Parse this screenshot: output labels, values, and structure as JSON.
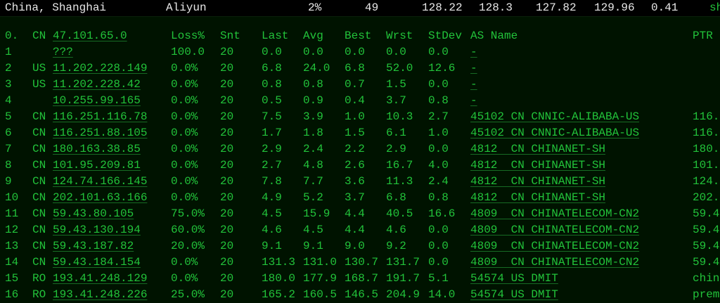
{
  "topbar": {
    "location": "China, Shanghai",
    "provider": "Aliyun",
    "loss": "2%",
    "sent": "49",
    "last": "128.22",
    "avg": "128.3",
    "best": "127.82",
    "worst": "129.96",
    "stdev": "0.41",
    "tail": "sh"
  },
  "header": {
    "hop": "0.",
    "cc": "CN",
    "ip": "47.101.65.0",
    "loss": "Loss%",
    "snt": "Snt",
    "last": "Last",
    "avg": "Avg",
    "best": "Best",
    "wrst": "Wrst",
    "stdev": "StDev",
    "as": "AS Name",
    "ptr": "PTR"
  },
  "rows": [
    {
      "hop": "1",
      "cc": "",
      "ip": "???",
      "loss": "100.0",
      "snt": "20",
      "last": "0.0",
      "avg": "0.0",
      "best": "0.0",
      "wrst": "0.0",
      "stdev": "0.0",
      "as": "-",
      "ptr": ""
    },
    {
      "hop": "2",
      "cc": "US",
      "ip": "11.202.228.149",
      "loss": "0.0%",
      "snt": "20",
      "last": "6.8",
      "avg": "24.0",
      "best": "6.8",
      "wrst": "52.0",
      "stdev": "12.6",
      "as": "-",
      "ptr": ""
    },
    {
      "hop": "3",
      "cc": "US",
      "ip": "11.202.228.42",
      "loss": "0.0%",
      "snt": "20",
      "last": "0.8",
      "avg": "0.8",
      "best": "0.7",
      "wrst": "1.5",
      "stdev": "0.0",
      "as": "-",
      "ptr": ""
    },
    {
      "hop": "4",
      "cc": "",
      "ip": "10.255.99.165",
      "loss": "0.0%",
      "snt": "20",
      "last": "0.5",
      "avg": "0.9",
      "best": "0.4",
      "wrst": "3.7",
      "stdev": "0.8",
      "as": "-",
      "ptr": ""
    },
    {
      "hop": "5",
      "cc": "CN",
      "ip": "116.251.116.78",
      "loss": "0.0%",
      "snt": "20",
      "last": "7.5",
      "avg": "3.9",
      "best": "1.0",
      "wrst": "10.3",
      "stdev": "2.7",
      "as": "45102 CN CNNIC-ALIBABA-US",
      "ptr": "116."
    },
    {
      "hop": "6",
      "cc": "CN",
      "ip": "116.251.88.105",
      "loss": "0.0%",
      "snt": "20",
      "last": "1.7",
      "avg": "1.8",
      "best": "1.5",
      "wrst": "6.1",
      "stdev": "1.0",
      "as": "45102 CN CNNIC-ALIBABA-US",
      "ptr": "116."
    },
    {
      "hop": "7",
      "cc": "CN",
      "ip": "180.163.38.85",
      "loss": "0.0%",
      "snt": "20",
      "last": "2.9",
      "avg": "2.4",
      "best": "2.2",
      "wrst": "2.9",
      "stdev": "0.0",
      "as": "4812  CN CHINANET-SH",
      "ptr": "180."
    },
    {
      "hop": "8",
      "cc": "CN",
      "ip": "101.95.209.81",
      "loss": "0.0%",
      "snt": "20",
      "last": "2.7",
      "avg": "4.8",
      "best": "2.6",
      "wrst": "16.7",
      "stdev": "4.0",
      "as": "4812  CN CHINANET-SH",
      "ptr": "101."
    },
    {
      "hop": "9",
      "cc": "CN",
      "ip": "124.74.166.145",
      "loss": "0.0%",
      "snt": "20",
      "last": "7.8",
      "avg": "7.7",
      "best": "3.6",
      "wrst": "11.3",
      "stdev": "2.4",
      "as": "4812  CN CHINANET-SH",
      "ptr": "124."
    },
    {
      "hop": "10",
      "cc": "CN",
      "ip": "202.101.63.166",
      "loss": "0.0%",
      "snt": "20",
      "last": "4.9",
      "avg": "5.2",
      "best": "3.7",
      "wrst": "6.8",
      "stdev": "0.8",
      "as": "4812  CN CHINANET-SH",
      "ptr": "202."
    },
    {
      "hop": "11",
      "cc": "CN",
      "ip": "59.43.80.105",
      "loss": "75.0%",
      "snt": "20",
      "last": "4.5",
      "avg": "15.9",
      "best": "4.4",
      "wrst": "40.5",
      "stdev": "16.6",
      "as": "4809  CN CHINATELECOM-CN2",
      "ptr": "59.4"
    },
    {
      "hop": "12",
      "cc": "CN",
      "ip": "59.43.130.194",
      "loss": "60.0%",
      "snt": "20",
      "last": "4.6",
      "avg": "4.5",
      "best": "4.4",
      "wrst": "4.6",
      "stdev": "0.0",
      "as": "4809  CN CHINATELECOM-CN2",
      "ptr": "59.4"
    },
    {
      "hop": "13",
      "cc": "CN",
      "ip": "59.43.187.82",
      "loss": "20.0%",
      "snt": "20",
      "last": "9.1",
      "avg": "9.1",
      "best": "9.0",
      "wrst": "9.2",
      "stdev": "0.0",
      "as": "4809  CN CHINATELECOM-CN2",
      "ptr": "59.4"
    },
    {
      "hop": "14",
      "cc": "CN",
      "ip": "59.43.184.154",
      "loss": "0.0%",
      "snt": "20",
      "last": "131.3",
      "avg": "131.0",
      "best": "130.7",
      "wrst": "131.7",
      "stdev": "0.0",
      "as": "4809  CN CHINATELECOM-CN2",
      "ptr": "59.4"
    },
    {
      "hop": "15",
      "cc": "RO",
      "ip": "193.41.248.129",
      "loss": "0.0%",
      "snt": "20",
      "last": "180.0",
      "avg": "177.9",
      "best": "168.7",
      "wrst": "191.7",
      "stdev": "5.1",
      "as": "54574 US DMIT",
      "ptr": "chin"
    },
    {
      "hop": "16",
      "cc": "RO",
      "ip": "193.41.248.226",
      "loss": "25.0%",
      "snt": "20",
      "last": "165.2",
      "avg": "160.5",
      "best": "146.5",
      "wrst": "204.9",
      "stdev": "14.0",
      "as": "54574 US DMIT",
      "ptr": "prem"
    }
  ]
}
